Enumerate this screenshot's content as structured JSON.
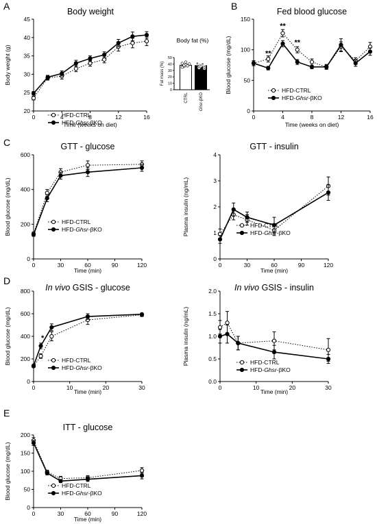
{
  "chart_data": [
    {
      "id": "body_weight",
      "panel": "A",
      "type": "line",
      "title": "Body weight",
      "xlabel": "Time (weeks on diet)",
      "ylabel": "Body weight (g)",
      "xlim": [
        0,
        16
      ],
      "ylim": [
        20,
        45
      ],
      "xticks": [
        "0",
        "4",
        "8",
        "12",
        "16"
      ],
      "yticks": [
        "20",
        "25",
        "30",
        "35",
        "40",
        "45"
      ],
      "series": [
        {
          "name": "HFD-CTRL",
          "style": "dotted-open",
          "x": [
            0,
            2,
            4,
            6,
            8,
            10,
            12,
            14,
            16
          ],
          "y": [
            23.5,
            29,
            29.5,
            31.5,
            33,
            34,
            37.5,
            38.5,
            39
          ],
          "err": [
            0.5,
            0.6,
            0.8,
            0.8,
            0.8,
            0.9,
            1.2,
            1.3,
            1.2
          ]
        },
        {
          "name": "HFD-Ghsr-βKO",
          "style": "solid-filled",
          "x": [
            0,
            2,
            4,
            6,
            8,
            10,
            12,
            14,
            16
          ],
          "y": [
            24.8,
            29.2,
            30.2,
            33,
            34.3,
            35.3,
            38.5,
            40.3,
            40.7
          ],
          "err": [
            0.5,
            0.5,
            0.7,
            0.8,
            0.7,
            0.8,
            1.0,
            1.2,
            0.9
          ]
        }
      ],
      "legend": [
        {
          "label": "HFD-CTRL",
          "prefix": "HFD-CTRL",
          "italic": "",
          "suffix": "",
          "style": "dotted-open"
        },
        {
          "label": "HFD-Ghsr-βKO",
          "prefix": "HFD-",
          "italic": "Ghsr",
          "suffix": "-βKO",
          "style": "solid-filled"
        }
      ]
    },
    {
      "id": "body_fat",
      "panel": "A",
      "type": "bar",
      "title": "Body fat (%)",
      "ylabel": "Fat mass (%)",
      "ylim": [
        0,
        50
      ],
      "yticks": [
        "0",
        "10",
        "20",
        "30",
        "40",
        "50"
      ],
      "categories": [
        "CTRL",
        "Ghsr-βKO"
      ],
      "category_italic": [
        "",
        "Ghsr"
      ],
      "category_suffix": [
        "",
        "-βKO"
      ],
      "values": [
        38,
        37.5
      ],
      "colors": [
        "#ffffff",
        "#000000"
      ],
      "points": [
        [
          41,
          36,
          39,
          37,
          40,
          35,
          38,
          43
        ],
        [
          40,
          34,
          37,
          39,
          36,
          41,
          35,
          38,
          40,
          33
        ]
      ]
    },
    {
      "id": "fed_glucose",
      "panel": "B",
      "type": "line",
      "title": "Fed blood glucose",
      "xlabel": "Time (weeks on diet)",
      "ylabel": "Blood glucose (mg/dL)",
      "xlim": [
        0,
        16
      ],
      "ylim": [
        0,
        150
      ],
      "xticks": [
        "0",
        "4",
        "8",
        "12",
        "16"
      ],
      "yticks": [
        "0",
        "50",
        "100",
        "150"
      ],
      "series": [
        {
          "name": "HFD-CTRL",
          "style": "dotted-open",
          "x": [
            0,
            2,
            4,
            6,
            8,
            10,
            12,
            14,
            16
          ],
          "y": [
            78,
            85,
            127,
            100,
            80,
            72,
            105,
            82,
            105
          ],
          "err": [
            4,
            5,
            6,
            5,
            5,
            4,
            8,
            5,
            7
          ]
        },
        {
          "name": "HFD-Ghsr-βKO",
          "style": "solid-filled",
          "x": [
            0,
            2,
            4,
            6,
            8,
            10,
            12,
            14,
            16
          ],
          "y": [
            78,
            70,
            110,
            80,
            72,
            72,
            108,
            78,
            97
          ],
          "err": [
            4,
            3,
            5,
            4,
            3,
            3,
            10,
            5,
            6
          ]
        }
      ],
      "annotations": [
        {
          "text": "**",
          "x": 2,
          "y": 90
        },
        {
          "text": "**",
          "x": 4,
          "y": 135
        },
        {
          "text": "**",
          "x": 6,
          "y": 108
        }
      ],
      "legend": [
        {
          "label": "HFD-CTRL",
          "prefix": "HFD-CTRL",
          "italic": "",
          "suffix": "",
          "style": "dotted-open"
        },
        {
          "label": "HFD-Ghsr-βKO",
          "prefix": "HFD-",
          "italic": "Ghsr",
          "suffix": "-βKO",
          "style": "solid-filled"
        }
      ]
    },
    {
      "id": "gtt_glucose",
      "panel": "C",
      "type": "line",
      "title": "GTT - glucose",
      "xlabel": "Time (min)",
      "ylabel": "Blood glucose (mg/dL)",
      "xlim": [
        0,
        120
      ],
      "ylim": [
        0,
        600
      ],
      "xticks": [
        "0",
        "30",
        "60",
        "90",
        "120"
      ],
      "yticks": [
        "0",
        "200",
        "400",
        "600"
      ],
      "series": [
        {
          "name": "HFD-CTRL",
          "style": "dotted-open",
          "x": [
            0,
            15,
            30,
            60,
            120
          ],
          "y": [
            145,
            380,
            500,
            540,
            545
          ],
          "err": [
            10,
            20,
            20,
            25,
            20
          ]
        },
        {
          "name": "HFD-Ghsr-βKO",
          "style": "solid-filled",
          "x": [
            0,
            15,
            30,
            60,
            120
          ],
          "y": [
            140,
            350,
            480,
            500,
            525
          ],
          "err": [
            10,
            20,
            20,
            25,
            20
          ]
        }
      ],
      "legend": [
        {
          "label": "HFD-CTRL",
          "prefix": "HFD-CTRL",
          "italic": "",
          "suffix": "",
          "style": "dotted-open"
        },
        {
          "label": "HFD-Ghsr-βKO",
          "prefix": "HFD-",
          "italic": "Ghsr",
          "suffix": "-βKO",
          "style": "solid-filled"
        }
      ]
    },
    {
      "id": "gtt_insulin",
      "panel": "C",
      "type": "line",
      "title": "GTT - insulin",
      "xlabel": "Time (min)",
      "ylabel": "Plasma insulin (ng/mL)",
      "xlim": [
        0,
        120
      ],
      "ylim": [
        0,
        4
      ],
      "xticks": [
        "0",
        "30",
        "60",
        "90",
        "120"
      ],
      "yticks": [
        "0",
        "1",
        "2",
        "3",
        "4"
      ],
      "series": [
        {
          "name": "HFD-CTRL",
          "style": "dotted-open",
          "x": [
            0,
            15,
            30,
            60,
            120
          ],
          "y": [
            0.95,
            1.7,
            1.5,
            1.1,
            2.8
          ],
          "err": [
            0.2,
            0.2,
            0.2,
            0.2,
            0.35
          ]
        },
        {
          "name": "HFD-Ghsr-βKO",
          "style": "solid-filled",
          "x": [
            0,
            15,
            30,
            60,
            120
          ],
          "y": [
            0.75,
            1.9,
            1.6,
            1.3,
            2.55
          ],
          "err": [
            0.15,
            0.25,
            0.2,
            0.3,
            0.3
          ]
        }
      ],
      "legend": [
        {
          "label": "HFD-CTRL",
          "prefix": "HFD-CTRL",
          "italic": "",
          "suffix": "",
          "style": "dotted-open"
        },
        {
          "label": "HFD-Ghsr-βKO",
          "prefix": "HFD-",
          "italic": "Ghsr",
          "suffix": "-βKO",
          "style": "solid-filled"
        }
      ]
    },
    {
      "id": "gsis_glucose",
      "panel": "D",
      "type": "line",
      "title": "In vivo GSIS - glucose",
      "title_italic": "In vivo",
      "title_rest": " GSIS - glucose",
      "xlabel": "Time (min)",
      "ylabel": "Blood glucose (mg/dL)",
      "xlim": [
        0,
        30
      ],
      "ylim": [
        0,
        800
      ],
      "xticks": [
        "0",
        "10",
        "20",
        "30"
      ],
      "yticks": [
        "0",
        "200",
        "400",
        "600",
        "800"
      ],
      "series": [
        {
          "name": "HFD-CTRL",
          "style": "dotted-open",
          "x": [
            0,
            2,
            5,
            15,
            30
          ],
          "y": [
            135,
            225,
            400,
            545,
            590
          ],
          "err": [
            10,
            20,
            40,
            40,
            15
          ]
        },
        {
          "name": "HFD-Ghsr-βKO",
          "style": "solid-filled",
          "x": [
            0,
            2,
            5,
            15,
            30
          ],
          "y": [
            140,
            315,
            480,
            575,
            595
          ],
          "err": [
            10,
            25,
            30,
            25,
            10
          ]
        }
      ],
      "annotations": [
        {
          "text": "*",
          "x": 2.5,
          "y": 365
        }
      ],
      "legend": [
        {
          "label": "HFD-CTRL",
          "prefix": "HFD-CTRL",
          "italic": "",
          "suffix": "",
          "style": "dotted-open"
        },
        {
          "label": "HFD-Ghsr-βKO",
          "prefix": "HFD-",
          "italic": "Ghsr",
          "suffix": "-βKO",
          "style": "solid-filled"
        }
      ]
    },
    {
      "id": "gsis_insulin",
      "panel": "D",
      "type": "line",
      "title": "In vivo GSIS - insulin",
      "title_italic": "In vivo",
      "title_rest": " GSIS - insulin",
      "xlabel": "Time (min)",
      "ylabel": "Plasma insulin (ng/mL)",
      "xlim": [
        0,
        30
      ],
      "ylim": [
        0,
        2.0
      ],
      "xticks": [
        "0",
        "10",
        "20",
        "30"
      ],
      "yticks": [
        "0.0",
        "0.5",
        "1.0",
        "1.5",
        "2.0"
      ],
      "series": [
        {
          "name": "HFD-CTRL",
          "style": "dotted-open",
          "x": [
            0,
            2,
            5,
            15,
            30
          ],
          "y": [
            1.2,
            1.3,
            0.85,
            0.9,
            0.7
          ],
          "err": [
            0.15,
            0.25,
            0.15,
            0.2,
            0.25
          ]
        },
        {
          "name": "HFD-Ghsr-βKO",
          "style": "solid-filled",
          "x": [
            0,
            2,
            5,
            15,
            30
          ],
          "y": [
            1.0,
            1.05,
            0.85,
            0.65,
            0.5
          ],
          "err": [
            0.15,
            0.2,
            0.15,
            0.15,
            0.1
          ]
        }
      ],
      "legend": [
        {
          "label": "HFD-CTRL",
          "prefix": "HFD-CTRL",
          "italic": "",
          "suffix": "",
          "style": "dotted-open"
        },
        {
          "label": "HFD-Ghsr-βKO",
          "prefix": "HFD-",
          "italic": "Ghsr",
          "suffix": "-βKO",
          "style": "solid-filled"
        }
      ]
    },
    {
      "id": "itt_glucose",
      "panel": "E",
      "type": "line",
      "title": "ITT - glucose",
      "xlabel": "Time (min)",
      "ylabel": "Blood glucose (mg/dL)",
      "xlim": [
        0,
        120
      ],
      "ylim": [
        0,
        200
      ],
      "xticks": [
        "0",
        "30",
        "60",
        "90",
        "120"
      ],
      "yticks": [
        "0",
        "50",
        "100",
        "150",
        "200"
      ],
      "series": [
        {
          "name": "HFD-CTRL",
          "style": "dotted-open",
          "x": [
            0,
            15,
            30,
            60,
            120
          ],
          "y": [
            185,
            98,
            80,
            82,
            102
          ],
          "err": [
            8,
            5,
            6,
            6,
            8
          ]
        },
        {
          "name": "HFD-Ghsr-βKO",
          "style": "solid-filled",
          "x": [
            0,
            15,
            30,
            60,
            120
          ],
          "y": [
            178,
            95,
            73,
            78,
            88
          ],
          "err": [
            7,
            5,
            4,
            6,
            9
          ]
        }
      ],
      "legend": [
        {
          "label": "HFD-CTRL",
          "prefix": "HFD-CTRL",
          "italic": "",
          "suffix": "",
          "style": "dotted-open"
        },
        {
          "label": "HFD-Ghsr-βKO",
          "prefix": "HFD-",
          "italic": "Ghsr",
          "suffix": "-βKO",
          "style": "solid-filled"
        }
      ]
    }
  ],
  "panel_labels": [
    "A",
    "B",
    "C",
    "D",
    "E"
  ]
}
